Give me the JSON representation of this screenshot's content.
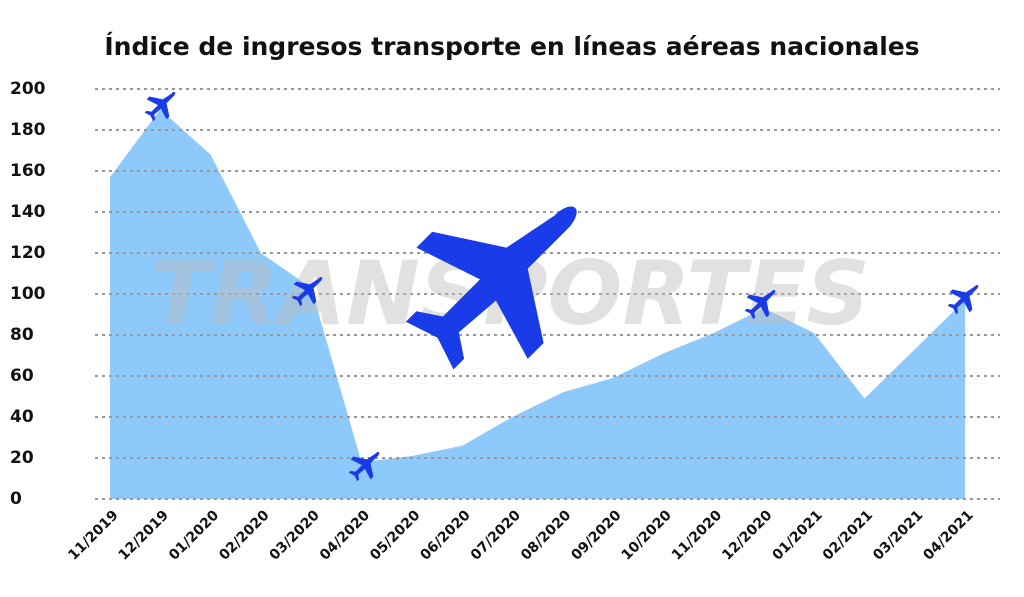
{
  "chart_data": {
    "type": "area",
    "title": "Índice de ingresos transporte en líneas aéreas nacionales",
    "watermark": "TRANSPORTES",
    "categories": [
      "11/2019",
      "12/2019",
      "01/2020",
      "02/2020",
      "03/2020",
      "04/2020",
      "05/2020",
      "06/2020",
      "07/2020",
      "08/2020",
      "09/2020",
      "10/2020",
      "11/2020",
      "12/2020",
      "01/2021",
      "02/2021",
      "03/2021",
      "04/2021"
    ],
    "values": [
      157,
      190,
      168,
      120,
      103,
      18,
      21,
      26,
      40,
      52,
      59,
      71,
      81,
      93,
      81,
      49,
      73,
      97
    ],
    "color": "#8ec9fb",
    "ylim": [
      0,
      200
    ],
    "yticks": [
      0,
      20,
      40,
      60,
      80,
      100,
      120,
      140,
      160,
      180,
      200
    ],
    "grid": true
  }
}
